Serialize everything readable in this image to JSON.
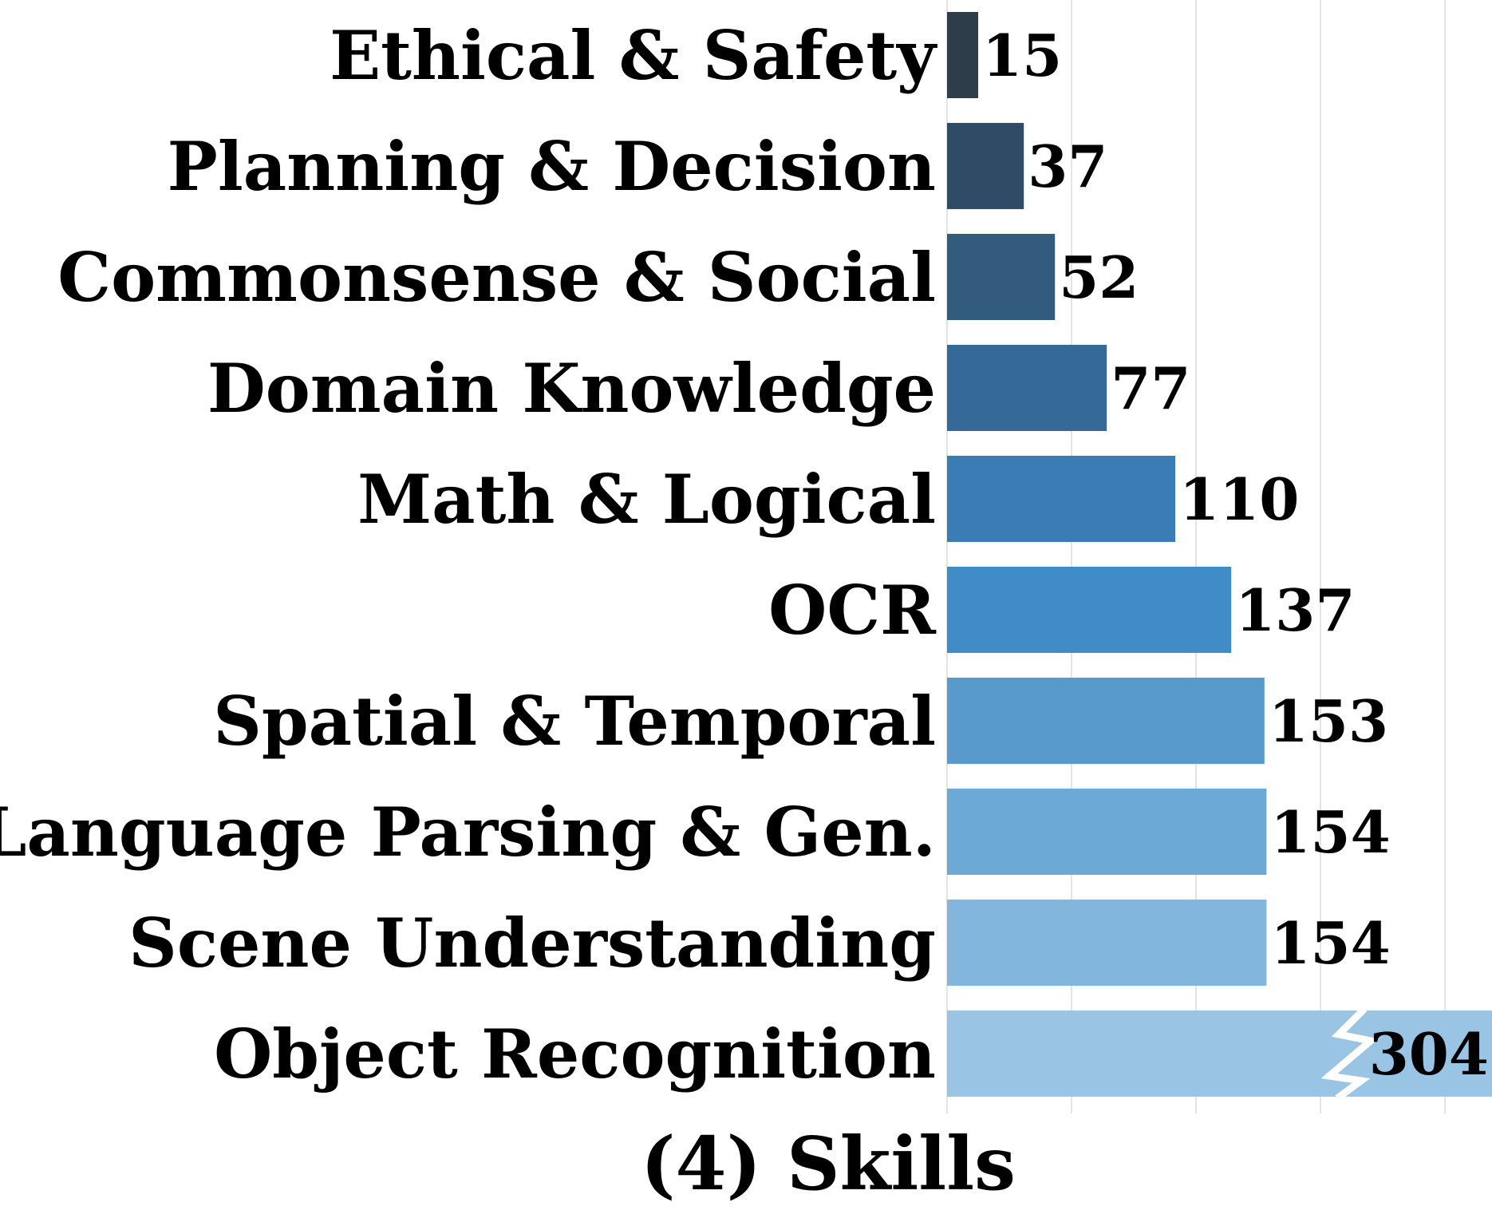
{
  "chart_data": {
    "type": "bar",
    "orientation": "horizontal",
    "title": "(4) Skills",
    "categories": [
      "Ethical & Safety",
      "Planning & Decision",
      "Commonsense & Social",
      "Domain Knowledge",
      "Math & Logical",
      "OCR",
      "Spatial & Temporal",
      "Language Parsing & Gen.",
      "Scene  Understanding",
      "Object Recognition"
    ],
    "values": [
      15,
      37,
      52,
      77,
      110,
      137,
      153,
      154,
      154,
      304
    ],
    "value_labels": [
      "15",
      "37",
      "52",
      "77",
      "110",
      "137",
      "153",
      "154",
      "154",
      "304"
    ],
    "colors": [
      "#2e3d4a",
      "#2f4b66",
      "#325b7d",
      "#356a98",
      "#3a7db6",
      "#3f8cc6",
      "#579acb",
      "#6ca9d4",
      "#82b6dc",
      "#9ac4e3"
    ],
    "broken_axis_category": "Object Recognition",
    "xlim": [
      0,
      220
    ],
    "grid": true,
    "legend": "none"
  }
}
